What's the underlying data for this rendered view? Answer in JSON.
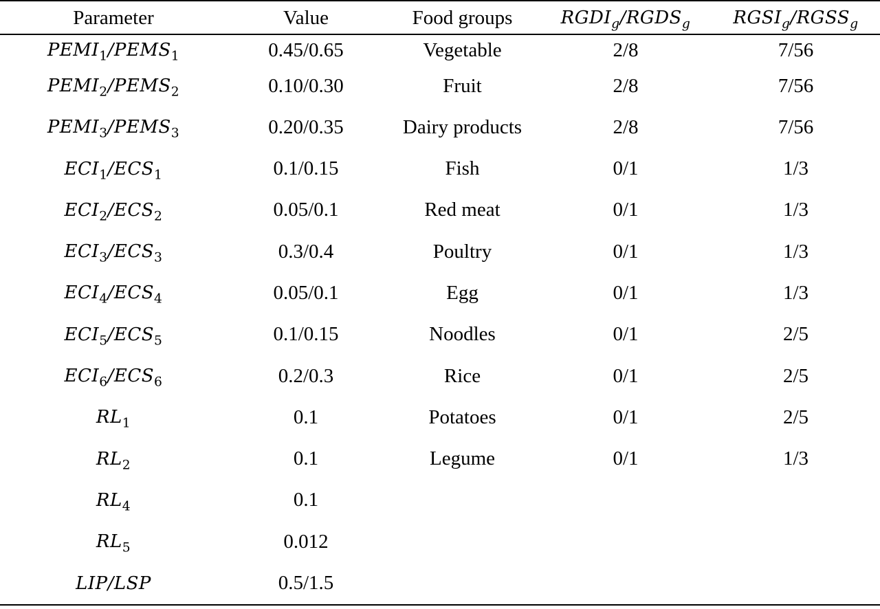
{
  "headers": {
    "parameter": "Parameter",
    "value": "Value",
    "food_groups": "Food groups",
    "rgd": {
      "a": "RGDI",
      "a_sub": "g",
      "b": "RGDS",
      "b_sub": "g"
    },
    "rgs": {
      "a": "RGSI",
      "a_sub": "g",
      "b": "RGSS",
      "b_sub": "g"
    }
  },
  "rows": [
    {
      "p": {
        "a": "PEMI",
        "a_sub": "1",
        "b": "PEMS",
        "b_sub": "1"
      },
      "value": "0.45/0.65",
      "food": "Vegetable",
      "rgd": "2/8",
      "rgs": "7/56"
    },
    {
      "p": {
        "a": "PEMI",
        "a_sub": "2",
        "b": "PEMS",
        "b_sub": "2"
      },
      "value": "0.10/0.30",
      "food": "Fruit",
      "rgd": "2/8",
      "rgs": "7/56"
    },
    {
      "p": {
        "a": "PEMI",
        "a_sub": "3",
        "b": "PEMS",
        "b_sub": "3"
      },
      "value": "0.20/0.35",
      "food": "Dairy products",
      "rgd": "2/8",
      "rgs": "7/56"
    },
    {
      "p": {
        "a": "ECI",
        "a_sub": "1",
        "b": "ECS",
        "b_sub": "1"
      },
      "value": "0.1/0.15",
      "food": "Fish",
      "rgd": "0/1",
      "rgs": "1/3"
    },
    {
      "p": {
        "a": "ECI",
        "a_sub": "2",
        "b": "ECS",
        "b_sub": "2"
      },
      "value": "0.05/0.1",
      "food": "Red meat",
      "rgd": "0/1",
      "rgs": "1/3"
    },
    {
      "p": {
        "a": "ECI",
        "a_sub": "3",
        "b": "ECS",
        "b_sub": "3"
      },
      "value": "0.3/0.4",
      "food": "Poultry",
      "rgd": "0/1",
      "rgs": "1/3"
    },
    {
      "p": {
        "a": "ECI",
        "a_sub": "4",
        "b": "ECS",
        "b_sub": "4"
      },
      "value": "0.05/0.1",
      "food": "Egg",
      "rgd": "0/1",
      "rgs": "1/3"
    },
    {
      "p": {
        "a": "ECI",
        "a_sub": "5",
        "b": "ECS",
        "b_sub": "5"
      },
      "value": "0.1/0.15",
      "food": "Noodles",
      "rgd": "0/1",
      "rgs": "2/5"
    },
    {
      "p": {
        "a": "ECI",
        "a_sub": "6",
        "b": "ECS",
        "b_sub": "6"
      },
      "value": "0.2/0.3",
      "food": "Rice",
      "rgd": "0/1",
      "rgs": "2/5"
    },
    {
      "p": {
        "a": "RL",
        "a_sub": "1"
      },
      "value": "0.1",
      "food": "Potatoes",
      "rgd": "0/1",
      "rgs": "2/5"
    },
    {
      "p": {
        "a": "RL",
        "a_sub": "2"
      },
      "value": "0.1",
      "food": "Legume",
      "rgd": "0/1",
      "rgs": "1/3"
    },
    {
      "p": {
        "a": "RL",
        "a_sub": "4"
      },
      "value": "0.1",
      "food": "",
      "rgd": "",
      "rgs": ""
    },
    {
      "p": {
        "a": "RL",
        "a_sub": "5"
      },
      "value": "0.012",
      "food": "",
      "rgd": "",
      "rgs": ""
    },
    {
      "p": {
        "a": "LIP",
        "b": "LSP"
      },
      "value": "0.5/1.5",
      "food": "",
      "rgd": "",
      "rgs": ""
    }
  ]
}
